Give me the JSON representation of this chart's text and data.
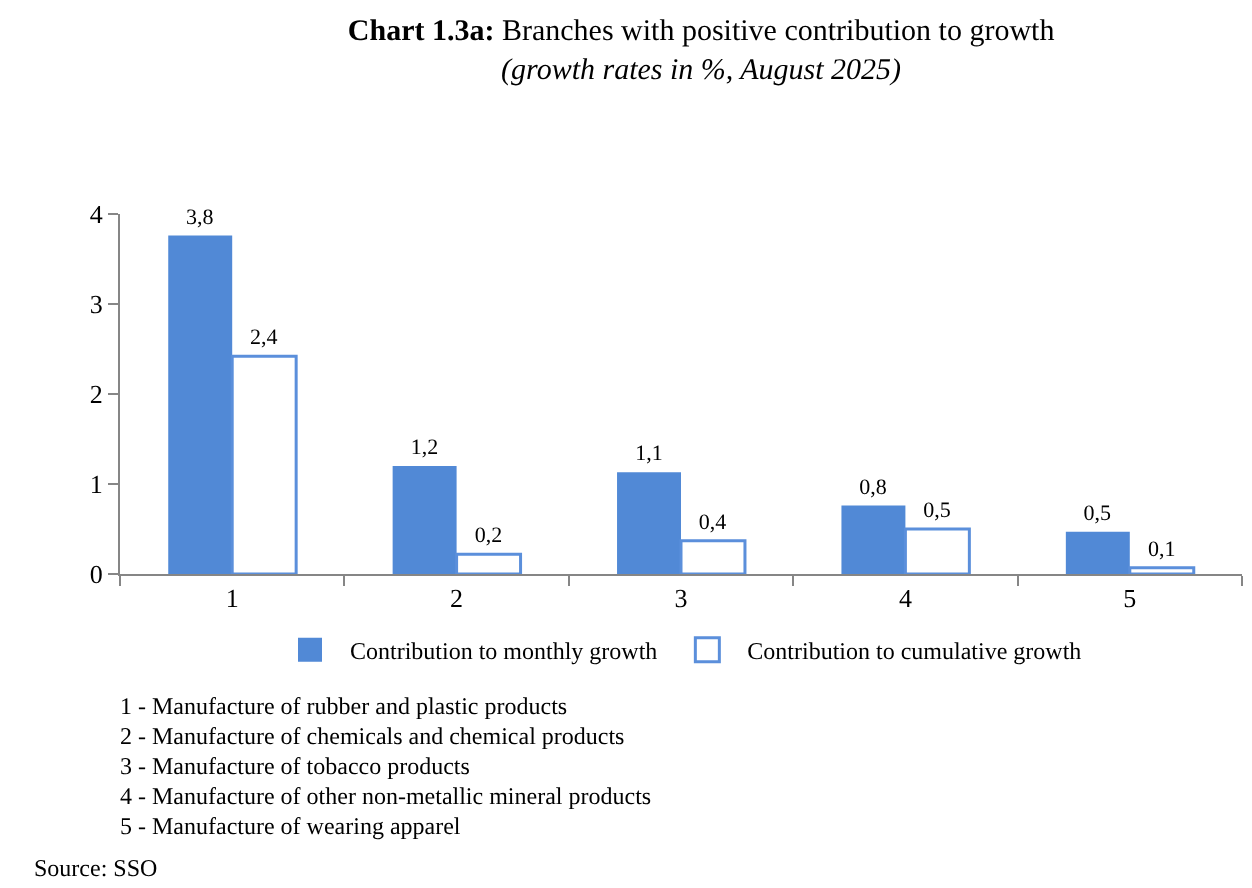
{
  "chart_data": {
    "type": "bar",
    "title": "Chart 1.3a: Branches with positive contribution to growth",
    "subtitle": "(growth rates in %, August 2025)",
    "categories": [
      "1",
      "2",
      "3",
      "4",
      "5"
    ],
    "series": [
      {
        "name": "Contribution to monthly growth",
        "color": "#5189d6",
        "values": [
          3.76,
          1.2,
          1.13,
          0.76,
          0.47
        ],
        "value_labels": [
          "3,8",
          "1,2",
          "1,1",
          "0,8",
          "0,5"
        ]
      },
      {
        "name": "Contribution to cumulative growth",
        "color": "#5b8fdb",
        "values": [
          2.42,
          0.22,
          0.37,
          0.5,
          0.07
        ],
        "value_labels": [
          "2,4",
          "0,2",
          "0,4",
          "0,5",
          "0,1"
        ]
      }
    ],
    "ylim": [
      0,
      4
    ],
    "yticks": [
      0,
      1,
      2,
      3,
      4
    ],
    "legend": "bottom",
    "annotations": [
      "1 - Manufacture of rubber and plastic products",
      "2 - Manufacture of chemicals and chemical products",
      "3 - Manufacture of tobacco products",
      "4 - Manufacture of other non-metallic mineral products",
      "5 - Manufacture of wearing apparel",
      "Source: SSO"
    ]
  }
}
